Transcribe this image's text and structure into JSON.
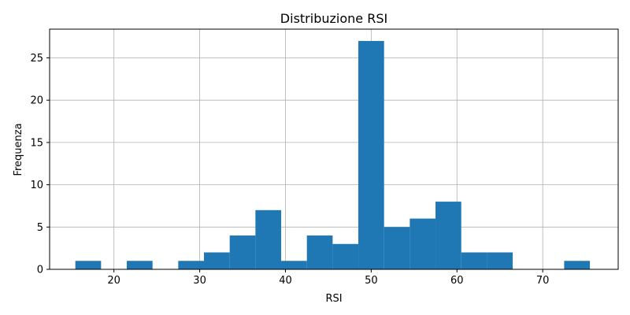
{
  "chart_data": {
    "type": "bar",
    "title": "Distribuzione RSI",
    "xlabel": "RSI",
    "ylabel": "Frequenza",
    "bar_color": "#1f77b4",
    "grid": true,
    "xlim": [
      12.5,
      78.8
    ],
    "ylim": [
      0,
      28.4
    ],
    "xticks": [
      20,
      30,
      40,
      50,
      60,
      70
    ],
    "yticks": [
      0,
      5,
      10,
      15,
      20,
      25
    ],
    "bins": [
      {
        "x0": 15.5,
        "x1": 18.5,
        "count": 1
      },
      {
        "x0": 18.5,
        "x1": 21.5,
        "count": 0
      },
      {
        "x0": 21.5,
        "x1": 24.5,
        "count": 1
      },
      {
        "x0": 24.5,
        "x1": 27.5,
        "count": 0
      },
      {
        "x0": 27.5,
        "x1": 30.5,
        "count": 1
      },
      {
        "x0": 30.5,
        "x1": 33.5,
        "count": 2
      },
      {
        "x0": 33.5,
        "x1": 36.5,
        "count": 4
      },
      {
        "x0": 36.5,
        "x1": 39.5,
        "count": 7
      },
      {
        "x0": 39.5,
        "x1": 42.5,
        "count": 1
      },
      {
        "x0": 42.5,
        "x1": 45.5,
        "count": 4
      },
      {
        "x0": 45.5,
        "x1": 48.5,
        "count": 3
      },
      {
        "x0": 48.5,
        "x1": 51.5,
        "count": 27
      },
      {
        "x0": 51.5,
        "x1": 54.5,
        "count": 5
      },
      {
        "x0": 54.5,
        "x1": 57.5,
        "count": 6
      },
      {
        "x0": 57.5,
        "x1": 60.5,
        "count": 8
      },
      {
        "x0": 60.5,
        "x1": 63.5,
        "count": 2
      },
      {
        "x0": 63.5,
        "x1": 66.5,
        "count": 2
      },
      {
        "x0": 66.5,
        "x1": 69.5,
        "count": 0
      },
      {
        "x0": 69.5,
        "x1": 72.5,
        "count": 0
      },
      {
        "x0": 72.5,
        "x1": 75.5,
        "count": 1
      }
    ]
  }
}
